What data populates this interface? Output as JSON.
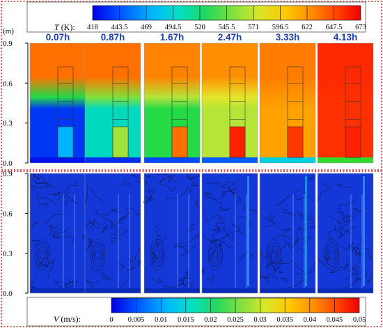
{
  "temperature_colorbar": {
    "label_var": "T",
    "label_unit": " (K):",
    "ticks": [
      "418",
      "443.5",
      "469",
      "494.5",
      "520",
      "545.5",
      "571",
      "596.5",
      "622",
      "647.5",
      "673"
    ]
  },
  "velocity_colorbar": {
    "label_var": "V",
    "label_unit": " (m/s):",
    "ticks": [
      "0",
      "0.005",
      "0.01",
      "0.015",
      "0.02",
      "0.025",
      "0.03",
      "0.035",
      "0.04",
      "0.045",
      "0.05"
    ]
  },
  "axis": {
    "unit": "(m)",
    "ticks": [
      "0.9",
      "0.6",
      "0.3",
      "0.0"
    ]
  },
  "times": [
    "0.07h",
    "0.87h",
    "1.67h",
    "2.47h",
    "3.33h",
    "4.13h"
  ],
  "colors": {
    "frame": "#d22020",
    "time_label": "#1a3fb0",
    "background_velocity": "#1438d8",
    "colormap": [
      "#0000e6",
      "#0066ff",
      "#00c8ff",
      "#00e0a0",
      "#2ed82e",
      "#a8e43c",
      "#e8e628",
      "#ffb000",
      "#ff6a00",
      "#ff1a00"
    ]
  },
  "temperature_panels": [
    {
      "time": "0.07h",
      "top": 0.88,
      "mid": 0.42,
      "low": 0.06,
      "cube": 0.2,
      "base": 0.02
    },
    {
      "time": "0.87h",
      "top": 0.88,
      "mid": 0.52,
      "low": 0.3,
      "cube": 0.55,
      "base": 0.05
    },
    {
      "time": "1.67h",
      "top": 0.85,
      "mid": 0.58,
      "low": 0.42,
      "cube": 0.88,
      "base": 0.08
    },
    {
      "time": "2.47h",
      "top": 0.83,
      "mid": 0.66,
      "low": 0.58,
      "cube": 0.99,
      "base": 0.1
    },
    {
      "time": "3.33h",
      "top": 0.86,
      "mid": 0.82,
      "low": 0.8,
      "cube": 0.96,
      "base": 0.26
    },
    {
      "time": "4.13h",
      "top": 0.98,
      "mid": 0.97,
      "low": 0.97,
      "cube": 0.99,
      "base": 0.45
    }
  ]
}
